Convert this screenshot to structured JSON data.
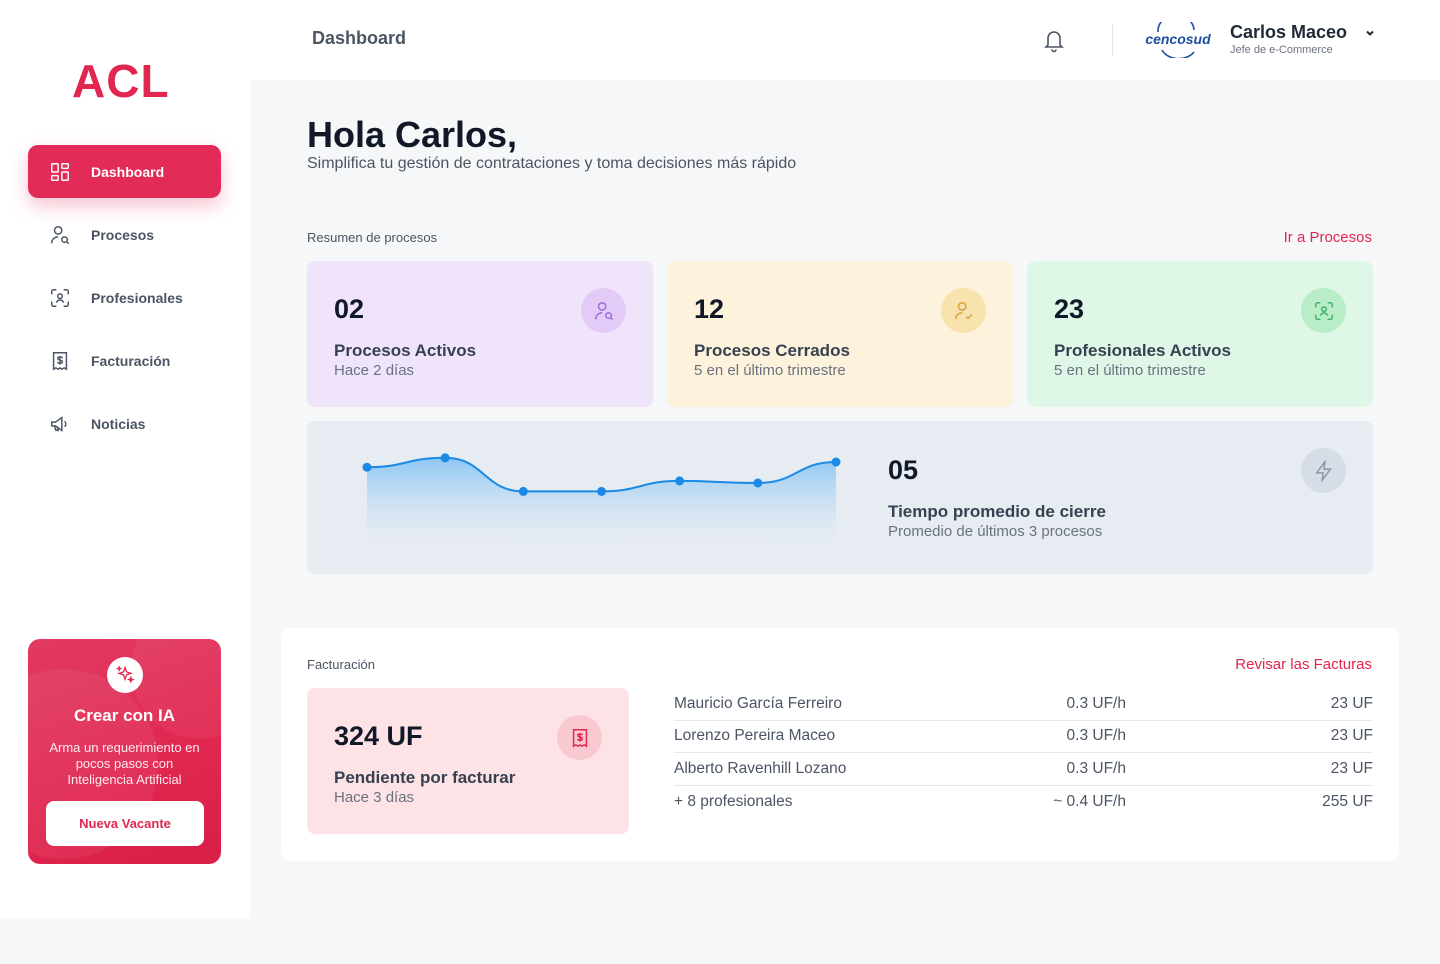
{
  "sidebar": {
    "logo_text": "ACL",
    "items": [
      {
        "label": "Dashboard",
        "icon": "dashboard-icon",
        "active": true
      },
      {
        "label": "Procesos",
        "icon": "user-search-icon",
        "active": false
      },
      {
        "label": "Profesionales",
        "icon": "face-scan-icon",
        "active": false
      },
      {
        "label": "Facturación",
        "icon": "receipt-icon",
        "active": false
      },
      {
        "label": "Noticias",
        "icon": "megaphone-icon",
        "active": false
      }
    ],
    "ia_card": {
      "icon": "sparkles-icon",
      "title": "Crear con IA",
      "description": "Arma un requerimiento en pocos pasos con Inteligencia Artificial",
      "button_label": "Nueva Vacante"
    }
  },
  "header": {
    "title": "Dashboard",
    "brand_logo_text": "cencosud",
    "user": {
      "name": "Carlos Maceo",
      "role": "Jefe de e-Commerce"
    }
  },
  "main": {
    "greeting": "Hola Carlos,",
    "subtitle": "Simplifica tu gestión de contrataciones y toma decisiones más rápido",
    "summary": {
      "label": "Resumen de procesos",
      "link": "Ir a Procesos",
      "cards": [
        {
          "value": "02",
          "label": "Procesos Activos",
          "sub": "Hace 2 días",
          "icon": "user-search-icon",
          "bg": "#f0e4fb",
          "icon_bg": "#e2ccf7",
          "icon_color": "#9b6bd6"
        },
        {
          "value": "12",
          "label": "Procesos Cerrados",
          "sub": "5 en el último trimestre",
          "icon": "user-check-icon",
          "bg": "#fdf3dc",
          "icon_bg": "#f8e2ae",
          "icon_color": "#d6a239"
        },
        {
          "value": "23",
          "label": "Profesionales Activos",
          "sub": "5 en el último trimestre",
          "icon": "face-scan-icon",
          "bg": "#dff7e6",
          "icon_bg": "#b8edc8",
          "icon_color": "#3fb56a"
        }
      ],
      "trend": {
        "value": "05",
        "label": "Tiempo promedio de cierre",
        "sub": "Promedio de últimos 3 procesos",
        "icon": "lightning-icon"
      }
    },
    "billing": {
      "label": "Facturación",
      "link": "Revisar las Facturas",
      "card": {
        "value": "324 UF",
        "label": "Pendiente por facturar",
        "sub": "Hace 3 días",
        "icon": "receipt-icon"
      },
      "rows": [
        {
          "name": "Mauricio García Ferreiro",
          "rate": "0.3 UF/h",
          "total": "23 UF"
        },
        {
          "name": "Lorenzo Pereira Maceo",
          "rate": "0.3 UF/h",
          "total": "23 UF"
        },
        {
          "name": "Alberto Ravenhill Lozano",
          "rate": "0.3 UF/h",
          "total": "23 UF"
        },
        {
          "name": "+ 8 profesionales",
          "rate": "~ 0.4 UF/h",
          "total": "255 UF"
        }
      ]
    }
  },
  "chart_data": {
    "type": "area",
    "x": [
      1,
      2,
      3,
      4,
      5,
      6,
      7
    ],
    "series": [
      {
        "values": [
          7.5,
          8.4,
          5.2,
          5.2,
          6.2,
          6.0,
          8.0
        ]
      }
    ],
    "ylim": [
      0,
      10
    ],
    "grid": false,
    "color": "#1a8ae6"
  }
}
